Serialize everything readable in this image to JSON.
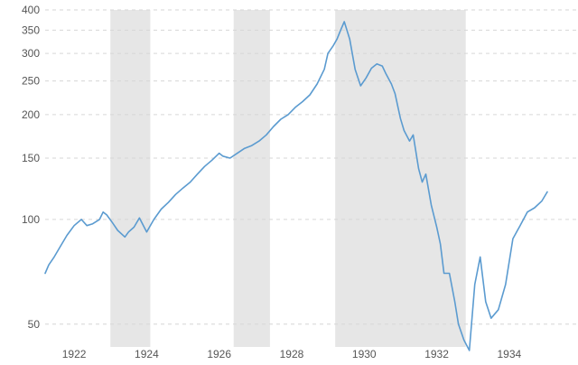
{
  "chart_data": {
    "type": "line",
    "title": "",
    "xlabel": "",
    "ylabel": "",
    "y_scale": "log",
    "ylim": [
      43,
      400
    ],
    "xlim": [
      1921.2,
      1935.05
    ],
    "grid": true,
    "legend": "none",
    "colors": {
      "line": "#5b9bd0",
      "recession_band": "#e6e6e6",
      "grid": "#d6d6d6",
      "tick_text": "#555555"
    },
    "y_ticks": [
      50,
      100,
      150,
      200,
      250,
      300,
      350,
      400
    ],
    "y_tick_labels": [
      "50",
      "100",
      "150",
      "200",
      "250",
      "300",
      "350",
      "400"
    ],
    "x_ticks": [
      1922,
      1924,
      1926,
      1928,
      1930,
      1932,
      1934
    ],
    "x_tick_labels": [
      "1922",
      "1924",
      "1926",
      "1928",
      "1930",
      "1932",
      "1934"
    ],
    "shaded_periods": [
      {
        "start": 1923.0,
        "end": 1924.1
      },
      {
        "start": 1926.4,
        "end": 1927.4
      },
      {
        "start": 1929.2,
        "end": 1932.8
      }
    ],
    "series": [
      {
        "x": [
          1921.2,
          1921.3,
          1921.45,
          1921.6,
          1921.8,
          1922.0,
          1922.2,
          1922.35,
          1922.5,
          1922.7,
          1922.8,
          1922.9,
          1923.05,
          1923.2,
          1923.4,
          1923.5,
          1923.65,
          1923.8,
          1924.0,
          1924.2,
          1924.4,
          1924.6,
          1924.8,
          1925.0,
          1925.2,
          1925.4,
          1925.6,
          1925.8,
          1926.0,
          1926.1,
          1926.3,
          1926.5,
          1926.7,
          1926.9,
          1927.1,
          1927.3,
          1927.5,
          1927.7,
          1927.9,
          1928.1,
          1928.3,
          1928.5,
          1928.7,
          1928.9,
          1929.0,
          1929.15,
          1929.25,
          1929.35,
          1929.45,
          1929.6,
          1929.75,
          1929.9,
          1930.05,
          1930.2,
          1930.35,
          1930.5,
          1930.6,
          1930.75,
          1930.85,
          1931.0,
          1931.1,
          1931.25,
          1931.35,
          1931.5,
          1931.6,
          1931.7,
          1931.85,
          1932.0,
          1932.1,
          1932.2,
          1932.35,
          1932.5,
          1932.6,
          1932.75,
          1932.9,
          1933.05,
          1933.2,
          1933.35,
          1933.5,
          1933.7,
          1933.9,
          1934.1,
          1934.3,
          1934.5,
          1934.7,
          1934.9,
          1935.05
        ],
        "values": [
          70,
          74,
          78,
          83,
          90,
          96,
          100,
          96,
          97,
          100,
          105,
          103,
          98,
          93,
          89,
          92,
          95,
          101,
          92,
          100,
          107,
          112,
          118,
          123,
          128,
          135,
          142,
          148,
          155,
          152,
          150,
          155,
          160,
          163,
          168,
          175,
          185,
          194,
          200,
          210,
          218,
          228,
          245,
          270,
          300,
          316,
          330,
          350,
          370,
          330,
          270,
          242,
          255,
          272,
          280,
          276,
          262,
          245,
          230,
          195,
          180,
          168,
          175,
          140,
          128,
          135,
          110,
          95,
          85,
          70,
          70,
          58,
          50,
          45,
          42,
          65,
          78,
          58,
          52,
          55,
          65,
          88,
          96,
          105,
          108,
          113,
          120
        ]
      }
    ]
  }
}
